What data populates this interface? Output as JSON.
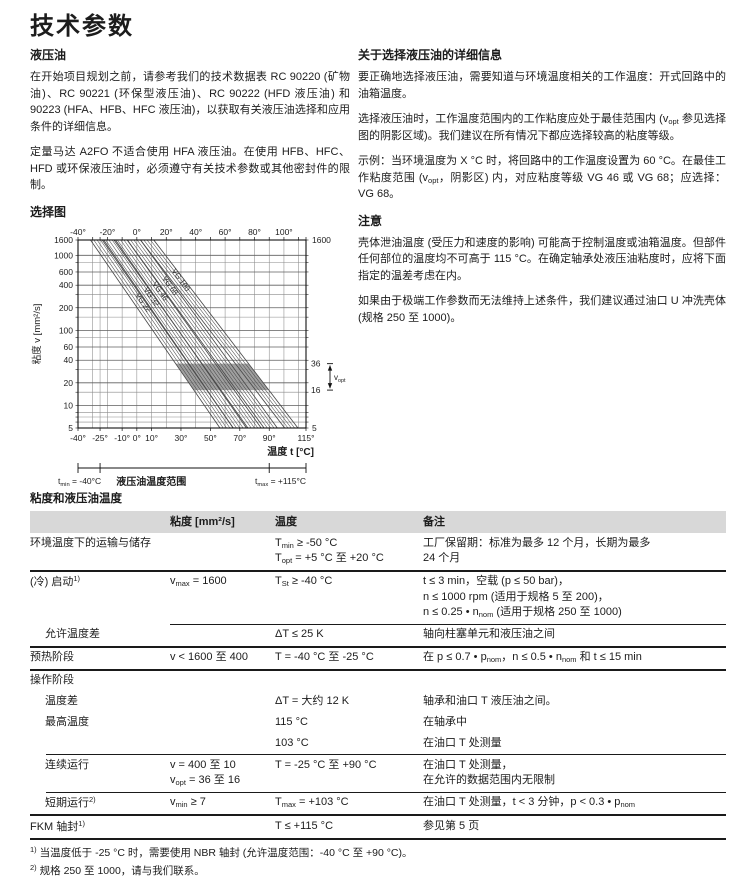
{
  "page": {
    "title": "技术参数"
  },
  "left": {
    "section_title": "液压油",
    "p1": "在开始项目规划之前，请参考我们的技术数据表 RC 90220 (矿物油)、RC 90221 (环保型液压油)、RC 90222 (HFD 液压油) 和 90223 (HFA、HFB、HFC 液压油)，以获取有关液压油选择和应用条件的详细信息。",
    "p2": "定量马达 A2FO 不适合使用 HFA 液压油。在使用 HFB、HFC、HFD 或环保液压油时，必须遵守有关技术参数或其他密封件的限制。",
    "chart_title": "选择图"
  },
  "right": {
    "info_title": "关于选择液压油的详细信息",
    "p1": "要正确地选择液压油，需要知道与环境温度相关的工作温度：开式回路中的油箱温度。",
    "p2": "选择液压油时，工作温度范围内的工作粘度应处于最佳范围内 (v_{opt} 参见选择图的阴影区域)。我们建议在所有情况下都应选择较高的粘度等级。",
    "p3": "示例：当环境温度为 X °C 时，将回路中的工作温度设置为 60 °C。在最佳工作粘度范围 (v_{opt}，阴影区) 内，对应粘度等级 VG 46 或 VG 68；应选择：VG 68。",
    "note_title": "注意",
    "note_p1": "壳体泄油温度 (受压力和速度的影响) 可能高于控制温度或油箱温度。但部件任何部位的温度均不可高于 115 °C。在确定轴承处液压油粘度时，应将下面指定的温差考虑在内。",
    "note_p2": "如果由于极端工作参数而无法维持上述条件，我们建议通过油口 U 冲洗壳体 (规格 250 至 1000)。"
  },
  "chart_data": {
    "type": "line",
    "title": "选择图",
    "xlabel": "温度 t [°C]",
    "ylabel": "粘度 v [mm²/s]",
    "xlim": [
      -40,
      115
    ],
    "ylim_log": [
      5,
      1600
    ],
    "grid": true,
    "top_ticks": [
      {
        "v": -40,
        "label": "-40°"
      },
      {
        "v": -20,
        "label": "-20°"
      },
      {
        "v": 0,
        "label": "0°"
      },
      {
        "v": 20,
        "label": "20°"
      },
      {
        "v": 40,
        "label": "40°"
      },
      {
        "v": 60,
        "label": "60°"
      },
      {
        "v": 80,
        "label": "80°"
      },
      {
        "v": 100,
        "label": "100°"
      }
    ],
    "bottom_ticks": [
      {
        "v": -40,
        "label": "-40°"
      },
      {
        "v": -25,
        "label": "-25°"
      },
      {
        "v": -10,
        "label": "-10°"
      },
      {
        "v": 0,
        "label": "0°"
      },
      {
        "v": 10,
        "label": "10°"
      },
      {
        "v": 30,
        "label": "30°"
      },
      {
        "v": 50,
        "label": "50°"
      },
      {
        "v": 70,
        "label": "70°"
      },
      {
        "v": 90,
        "label": "90°"
      },
      {
        "v": 115,
        "label": "115°"
      }
    ],
    "y_ticks": [
      1600,
      1000,
      600,
      400,
      200,
      100,
      60,
      40,
      20,
      10,
      5
    ],
    "minor_y": [
      5,
      6,
      7,
      8,
      10,
      15,
      20,
      30,
      40,
      60,
      80,
      100,
      150,
      200,
      300,
      400,
      600,
      800,
      1000,
      1600
    ],
    "grid_x": [
      -40,
      -30,
      -25,
      -20,
      -10,
      0,
      10,
      20,
      30,
      40,
      50,
      60,
      70,
      80,
      90,
      100,
      110,
      115
    ],
    "series": [
      {
        "name": "VG 22",
        "t_at_v1600": -27,
        "t_at_v5": 61
      },
      {
        "name": "VG 32",
        "t_at_v1600": -19,
        "t_at_v5": 70
      },
      {
        "name": "VG 46",
        "t_at_v1600": -11,
        "t_at_v5": 80
      },
      {
        "name": "VG 68",
        "t_at_v1600": -2,
        "t_at_v5": 91
      },
      {
        "name": "VG 100",
        "t_at_v1600": 7,
        "t_at_v5": 105
      }
    ],
    "band_half_width_c": 4.5,
    "v_opt_range": [
      16,
      36
    ],
    "right_axis": {
      "top": "1600",
      "bottom": "5",
      "upper": "36",
      "lower": "16",
      "bracket_label": "v_{opt}"
    },
    "t_min_label": "t_{min} = -40°C",
    "t_max_label": "t_{max} = +115°C",
    "range_label": "液压油温度范围"
  },
  "table": {
    "title": "粘度和液压油温度",
    "rows": [
      {
        "kind": "header",
        "cells": [
          "",
          "粘度 [mm²/s]",
          "温度",
          "备注"
        ]
      },
      {
        "kind": "row",
        "cells": [
          "环境温度下的运输与储存",
          "",
          [
            "T_{min} ≥ -50 °C",
            "T_{opt} = +5 °C 至 +20 °C"
          ],
          [
            "工厂保留期：标准为最多 12 个月，长期为最多",
            "24 个月"
          ]
        ]
      },
      {
        "kind": "sep",
        "style": "thick"
      },
      {
        "kind": "row",
        "cells": [
          "(冷) 启动^{1)}",
          "v_{max} = 1600",
          "T_{St} ≥ -40 °C",
          [
            "t ≤ 3 min，空载 (p ≤ 50 bar)，",
            "n ≤ 1000 rpm (适用于规格 5 至 200)，",
            "n ≤ 0.25 • n_{nom} (适用于规格 250 至 1000)"
          ]
        ]
      },
      {
        "kind": "sep",
        "style": "thin",
        "indent": 140
      },
      {
        "kind": "row",
        "indent": true,
        "cells": [
          "允许温度差",
          "",
          "ΔT ≤ 25 K",
          "轴向柱塞单元和液压油之间"
        ]
      },
      {
        "kind": "sep",
        "style": "thick"
      },
      {
        "kind": "row",
        "cells": [
          "预热阶段",
          "v < 1600 至 400",
          "T = -40 °C 至 -25 °C",
          "在 p ≤ 0.7 • p_{nom}，n ≤ 0.5 • n_{nom} 和 t ≤ 15 min"
        ]
      },
      {
        "kind": "sep",
        "style": "thick"
      },
      {
        "kind": "row",
        "cells": [
          "操作阶段",
          "",
          "",
          ""
        ]
      },
      {
        "kind": "row",
        "indent": true,
        "cells": [
          "温度差",
          "",
          "ΔT = 大约 12 K",
          "轴承和油口 T 液压油之间。"
        ]
      },
      {
        "kind": "row",
        "indent": true,
        "cells": [
          "最高温度",
          "",
          "115 °C",
          "在轴承中"
        ]
      },
      {
        "kind": "row",
        "indent": true,
        "cells": [
          "",
          "",
          "103 °C",
          "在油口 T 处测量"
        ]
      },
      {
        "kind": "sep",
        "style": "thin",
        "indent": 16
      },
      {
        "kind": "row",
        "indent": true,
        "cells": [
          "连续运行",
          [
            "v = 400 至 10",
            "v_{opt} = 36 至 16"
          ],
          "T = -25 °C 至 +90 °C",
          [
            "在油口 T 处测量，",
            "在允许的数据范围内无限制"
          ]
        ]
      },
      {
        "kind": "sep",
        "style": "thin",
        "indent": 16
      },
      {
        "kind": "row",
        "indent": true,
        "cells": [
          "短期运行^{2)}",
          "v_{min} ≥ 7",
          "T_{max} = +103 °C",
          "在油口 T 处测量，t < 3 分钟，p < 0.3 • p_{nom}"
        ]
      },
      {
        "kind": "sep",
        "style": "thick"
      },
      {
        "kind": "row",
        "cells": [
          "FKM 轴封^{1)}",
          "",
          "T ≤ +115 °C",
          "参见第 5 页"
        ]
      },
      {
        "kind": "sep",
        "style": "thick"
      }
    ]
  },
  "footnotes": [
    {
      "mark": "1)",
      "text": "当温度低于 -25 °C 时，需要使用 NBR 轴封 (允许温度范围：-40 °C 至 +90 °C)。"
    },
    {
      "mark": "2)",
      "text": "规格 250 至 1000，请与我们联系。"
    }
  ],
  "colors": {
    "table_header_bg": "#d8d8d8",
    "shade": "#8f8f8f",
    "grid": "#8a8a8a",
    "band_line": "#4a4a4a",
    "axis": "#111111"
  }
}
